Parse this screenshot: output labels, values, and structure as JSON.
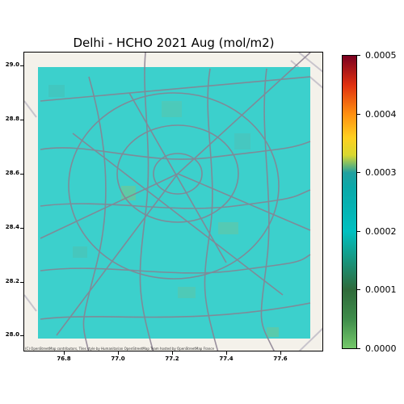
{
  "title": "Delhi - HCHO 2021 Aug (mol/m2)",
  "y_ticks": [
    "29.0",
    "28.8",
    "28.6",
    "28.4",
    "28.2",
    "28.0"
  ],
  "x_ticks": [
    "76.8",
    "77.0",
    "77.2",
    "77.4",
    "77.6"
  ],
  "colorbar_ticks": [
    "0.0005",
    "0.0004",
    "0.0003",
    "0.0002",
    "0.0001",
    "0.0000"
  ],
  "attribution": "(C) OpenStreetMap contributors, Tiles style by Humanitarian OpenStreetMap Team hosted by OpenStreetMap France",
  "colors": {
    "data_fill": "#3cd0cc",
    "road": "#8a7f90",
    "basemap": "#f4f1ea"
  },
  "colorbar_range": [
    0,
    0.0005
  ],
  "dominant_value_range": [
    0.00018,
    0.00022
  ]
}
